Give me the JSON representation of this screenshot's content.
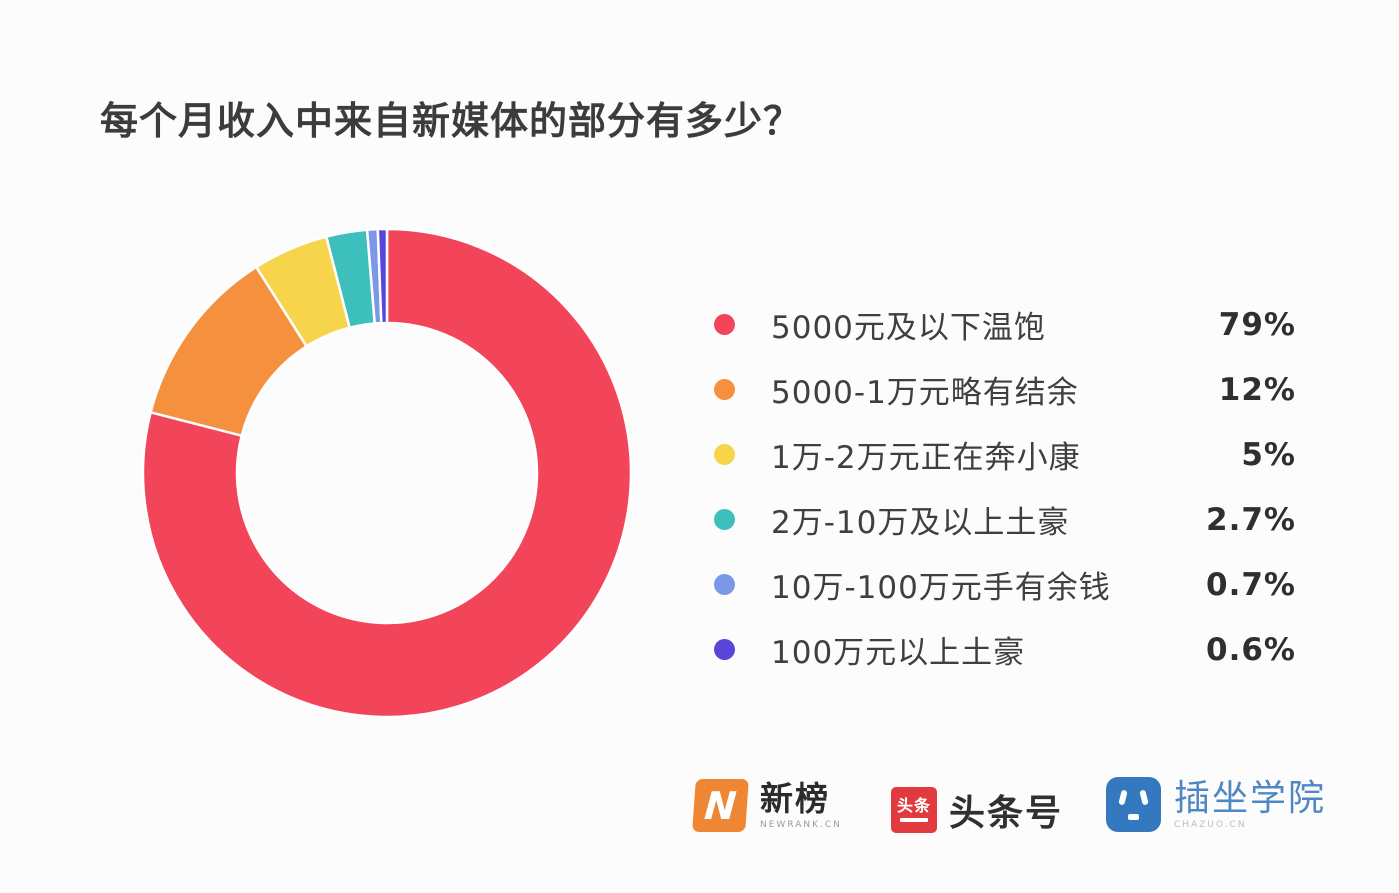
{
  "title": "每个月收入中来自新媒体的部分有多少？",
  "chart_data": {
    "type": "pie",
    "subtype": "donut",
    "title": "每个月收入中来自新媒体的部分有多少？",
    "legend_position": "right",
    "direction": "clockwise",
    "start_angle_deg": 0,
    "inner_radius_ratio": 0.616,
    "categories": [
      "5000元及以下温饱",
      "5000-1万元略有结余",
      "1万-2万元正在奔小康",
      "2万-10万及以上土豪",
      "10万-100万元手有余钱",
      "100万元以上土豪"
    ],
    "values": [
      79,
      12,
      5,
      2.7,
      0.7,
      0.6
    ],
    "items": [
      {
        "label": "5000元及以下温饱",
        "value": 79,
        "display": "79%",
        "color": "#f2455a"
      },
      {
        "label": "5000-1万元略有结余",
        "value": 12,
        "display": "12%",
        "color": "#f5903e"
      },
      {
        "label": "1万-2万元正在奔小康",
        "value": 5,
        "display": "5%",
        "color": "#f6d54c"
      },
      {
        "label": "2万-10万及以上土豪",
        "value": 2.7,
        "display": "2.7%",
        "color": "#3dc0bc"
      },
      {
        "label": "10万-100万元手有余钱",
        "value": 0.7,
        "display": "0.7%",
        "color": "#7b97e8"
      },
      {
        "label": "100万元以上土豪",
        "value": 0.6,
        "display": "0.6%",
        "color": "#5a45d9"
      }
    ]
  },
  "footer": {
    "newrank": {
      "name": "新榜",
      "caption": "NEWRANK.CN",
      "icon_letter": "N",
      "icon_color": "#ef8633"
    },
    "toutiao": {
      "icon_text": "头条",
      "name": "头条号",
      "icon_color": "#e23b3f"
    },
    "chazuo": {
      "name": "插坐学院",
      "caption": "CHAZUO.CN",
      "icon_color": "#3478bf"
    }
  }
}
